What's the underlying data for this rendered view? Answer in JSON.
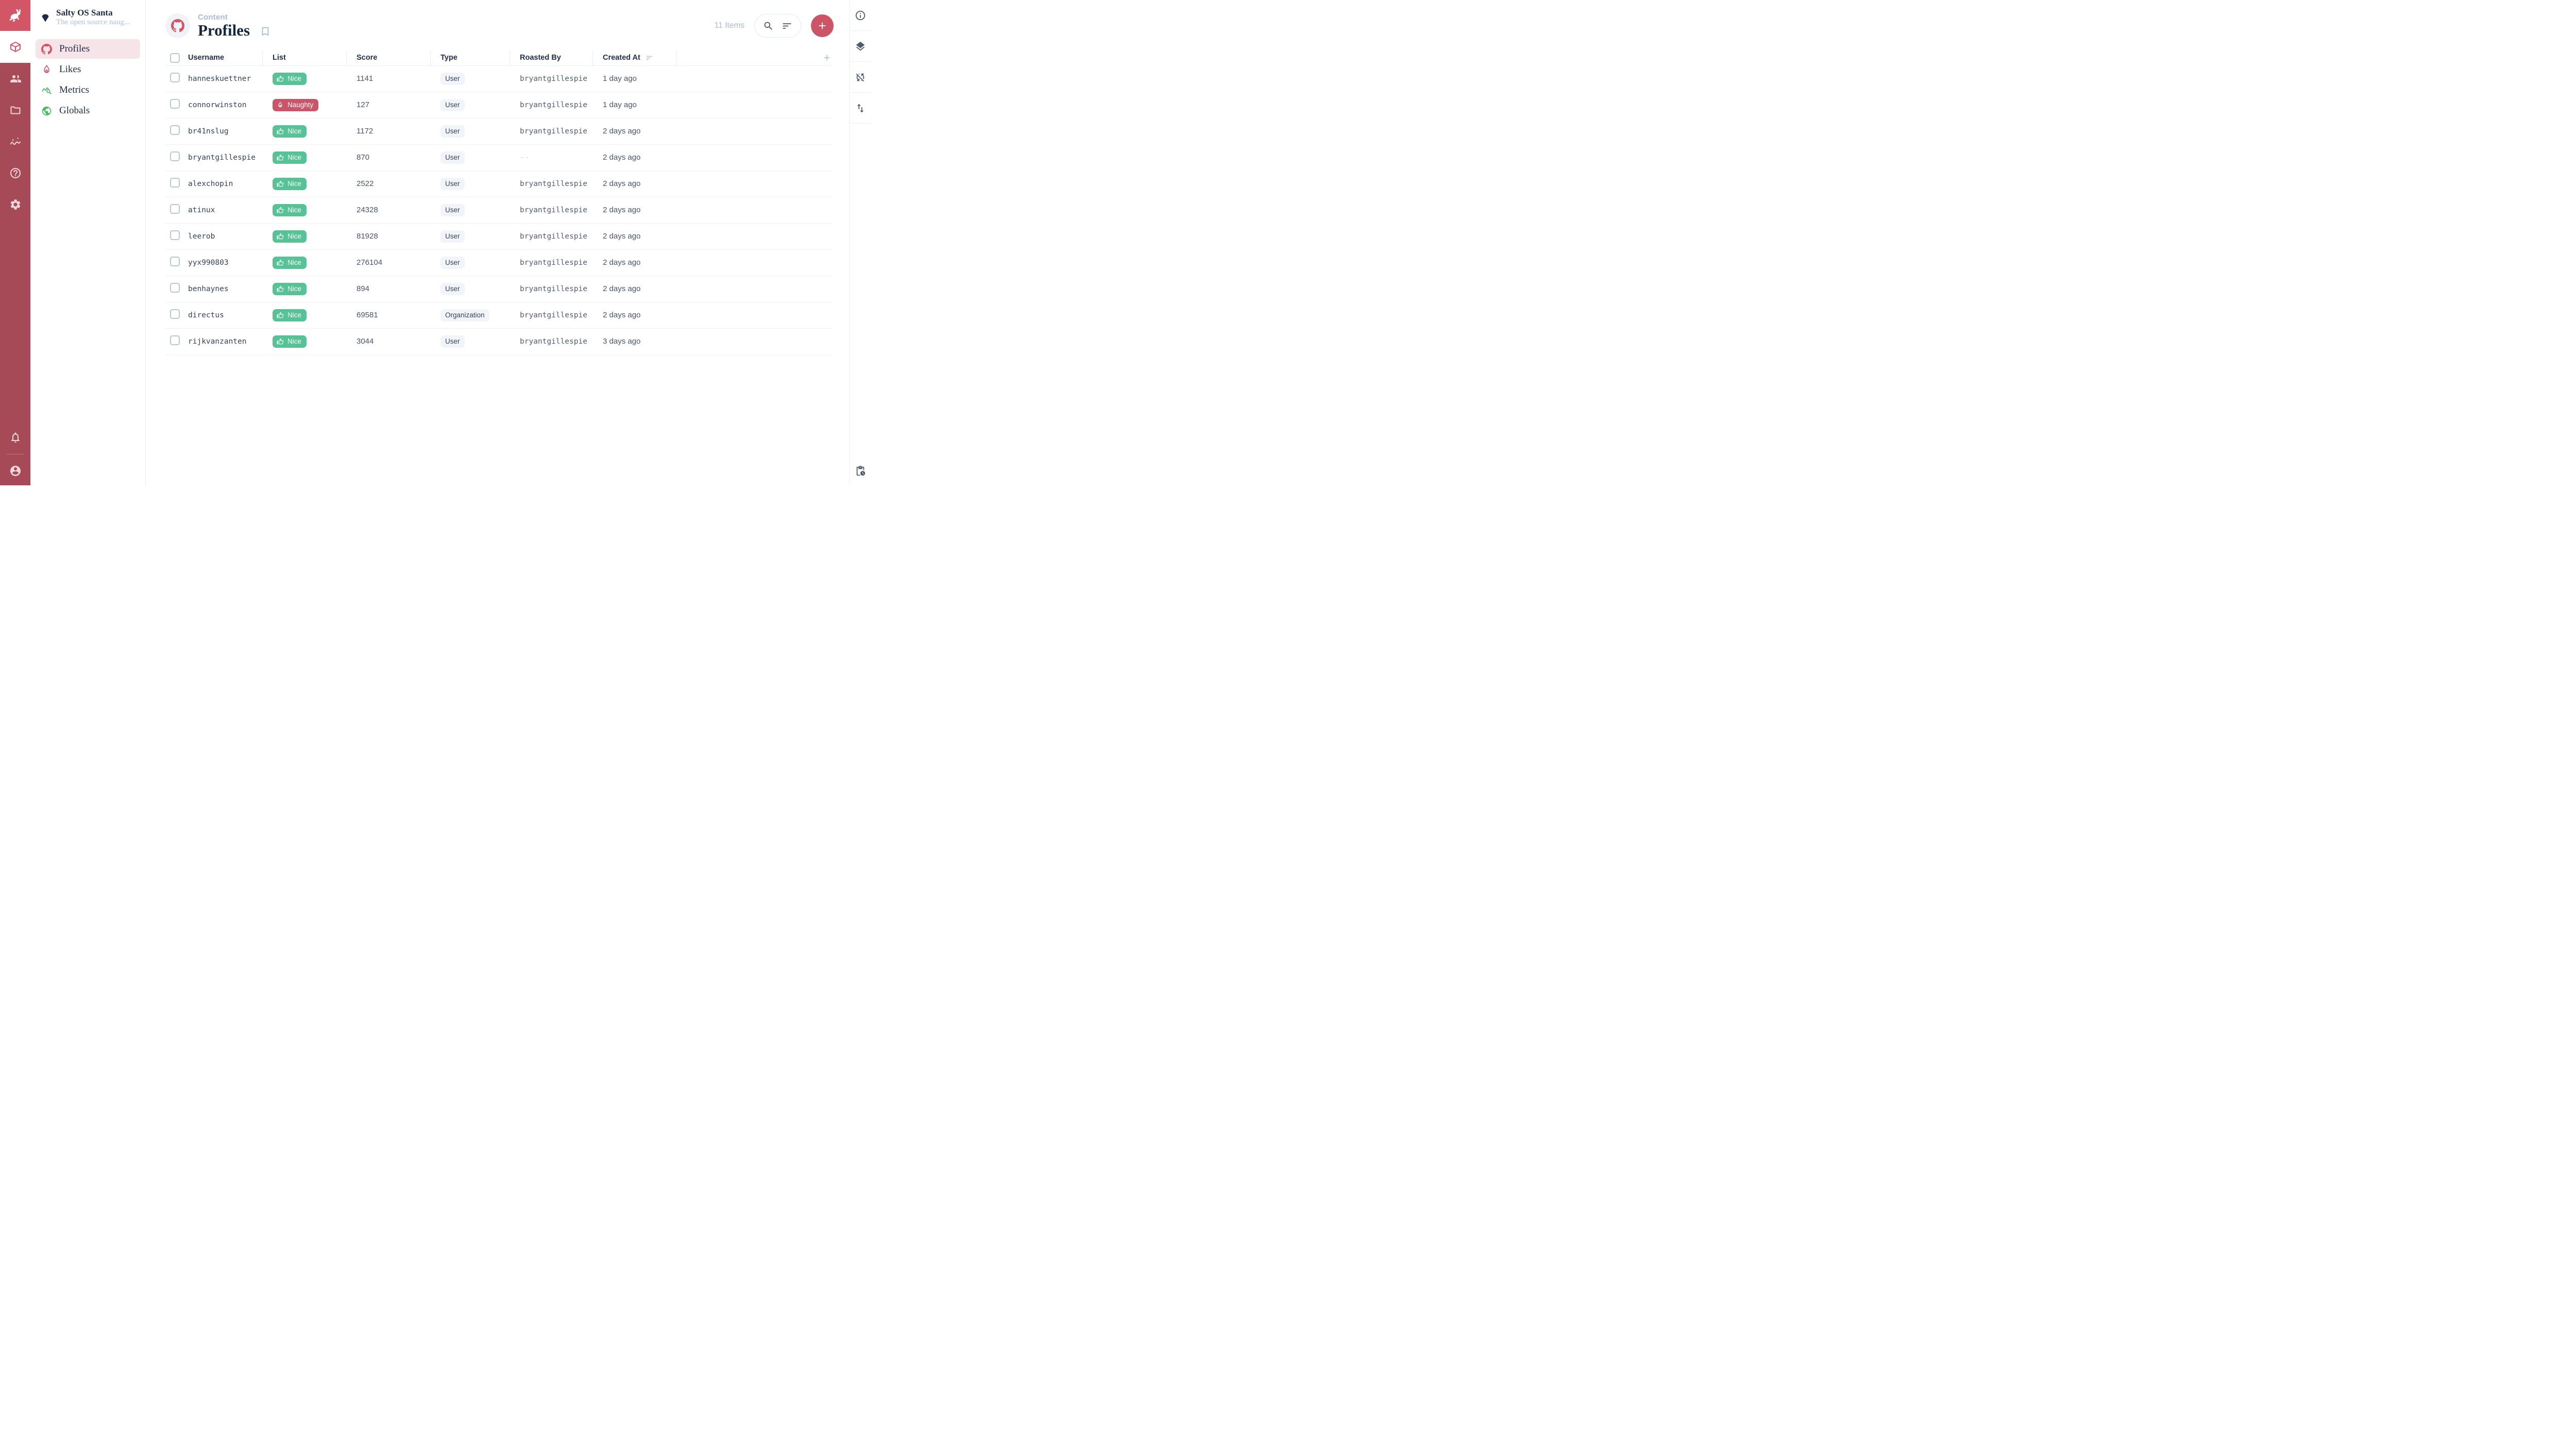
{
  "colors": {
    "accent": "#D25666",
    "module_bar": "#A64A58",
    "logo_tile": "#D25666",
    "add_button": "#CB5566",
    "nice": "#57C295",
    "naughty": "#CB5568",
    "active_nav_bg": "#F7E4E9",
    "metrics_green": "#4EB964",
    "globals_green": "#4EB964"
  },
  "project": {
    "name": "Salty OS Santa",
    "description": "The open source naug...",
    "icon": "gem-icon"
  },
  "module_bar": {
    "items": [
      {
        "id": "content",
        "icon": "box",
        "active": true
      },
      {
        "id": "users",
        "icon": "people",
        "active": false
      },
      {
        "id": "files",
        "icon": "folder",
        "active": false
      },
      {
        "id": "insights",
        "icon": "insights",
        "active": false
      },
      {
        "id": "docs",
        "icon": "help",
        "active": false
      },
      {
        "id": "settings",
        "icon": "gear",
        "active": false
      }
    ],
    "bottom": [
      {
        "id": "notifications",
        "icon": "bell"
      },
      {
        "id": "account",
        "icon": "account"
      }
    ]
  },
  "nav": {
    "items": [
      {
        "id": "profiles",
        "label": "Profiles",
        "icon": "github",
        "color": "#D25666",
        "active": true
      },
      {
        "id": "likes",
        "label": "Likes",
        "icon": "flame",
        "color": "#CB5568",
        "active": false
      },
      {
        "id": "metrics",
        "label": "Metrics",
        "icon": "metrics",
        "color": "#4EB964",
        "active": false
      },
      {
        "id": "globals",
        "label": "Globals",
        "icon": "globe",
        "color": "#4EB964",
        "active": false
      }
    ]
  },
  "header": {
    "breadcrumb": "Content",
    "title": "Profiles",
    "collection_icon": "github-icon",
    "items_count": "11 Items"
  },
  "table": {
    "empty_placeholder": "--",
    "columns": [
      {
        "id": "username",
        "label": "Username"
      },
      {
        "id": "list",
        "label": "List"
      },
      {
        "id": "score",
        "label": "Score"
      },
      {
        "id": "type",
        "label": "Type"
      },
      {
        "id": "roasted_by",
        "label": "Roasted By"
      },
      {
        "id": "created_at",
        "label": "Created At",
        "sorted": true
      }
    ],
    "rows": [
      {
        "username": "hanneskuettner",
        "list": {
          "label": "Nice",
          "type": "nice"
        },
        "score": "1141",
        "type": "User",
        "roasted_by": "bryantgillespie",
        "created_at": "1 day ago"
      },
      {
        "username": "connorwinston",
        "list": {
          "label": "Naughty",
          "type": "naughty"
        },
        "score": "127",
        "type": "User",
        "roasted_by": "bryantgillespie",
        "created_at": "1 day ago"
      },
      {
        "username": "br41nslug",
        "list": {
          "label": "Nice",
          "type": "nice"
        },
        "score": "1172",
        "type": "User",
        "roasted_by": "bryantgillespie",
        "created_at": "2 days ago"
      },
      {
        "username": "bryantgillespie",
        "list": {
          "label": "Nice",
          "type": "nice"
        },
        "score": "870",
        "type": "User",
        "roasted_by": "",
        "created_at": "2 days ago"
      },
      {
        "username": "alexchopin",
        "list": {
          "label": "Nice",
          "type": "nice"
        },
        "score": "2522",
        "type": "User",
        "roasted_by": "bryantgillespie",
        "created_at": "2 days ago"
      },
      {
        "username": "atinux",
        "list": {
          "label": "Nice",
          "type": "nice"
        },
        "score": "24328",
        "type": "User",
        "roasted_by": "bryantgillespie",
        "created_at": "2 days ago"
      },
      {
        "username": "leerob",
        "list": {
          "label": "Nice",
          "type": "nice"
        },
        "score": "81928",
        "type": "User",
        "roasted_by": "bryantgillespie",
        "created_at": "2 days ago"
      },
      {
        "username": "yyx990803",
        "list": {
          "label": "Nice",
          "type": "nice"
        },
        "score": "276104",
        "type": "User",
        "roasted_by": "bryantgillespie",
        "created_at": "2 days ago"
      },
      {
        "username": "benhaynes",
        "list": {
          "label": "Nice",
          "type": "nice"
        },
        "score": "894",
        "type": "User",
        "roasted_by": "bryantgillespie",
        "created_at": "2 days ago"
      },
      {
        "username": "directus",
        "list": {
          "label": "Nice",
          "type": "nice"
        },
        "score": "69581",
        "type": "Organization",
        "roasted_by": "bryantgillespie",
        "created_at": "2 days ago"
      },
      {
        "username": "rijkvanzanten",
        "list": {
          "label": "Nice",
          "type": "nice"
        },
        "score": "3044",
        "type": "User",
        "roasted_by": "bryantgillespie",
        "created_at": "3 days ago"
      }
    ]
  },
  "right_sidebar": {
    "top": [
      {
        "id": "info",
        "icon": "info"
      },
      {
        "id": "layers",
        "icon": "layers"
      },
      {
        "id": "live-preview-off",
        "icon": "sync-off"
      },
      {
        "id": "sort-items",
        "icon": "swap"
      }
    ],
    "bottom": [
      {
        "id": "activity",
        "icon": "pending"
      }
    ]
  }
}
